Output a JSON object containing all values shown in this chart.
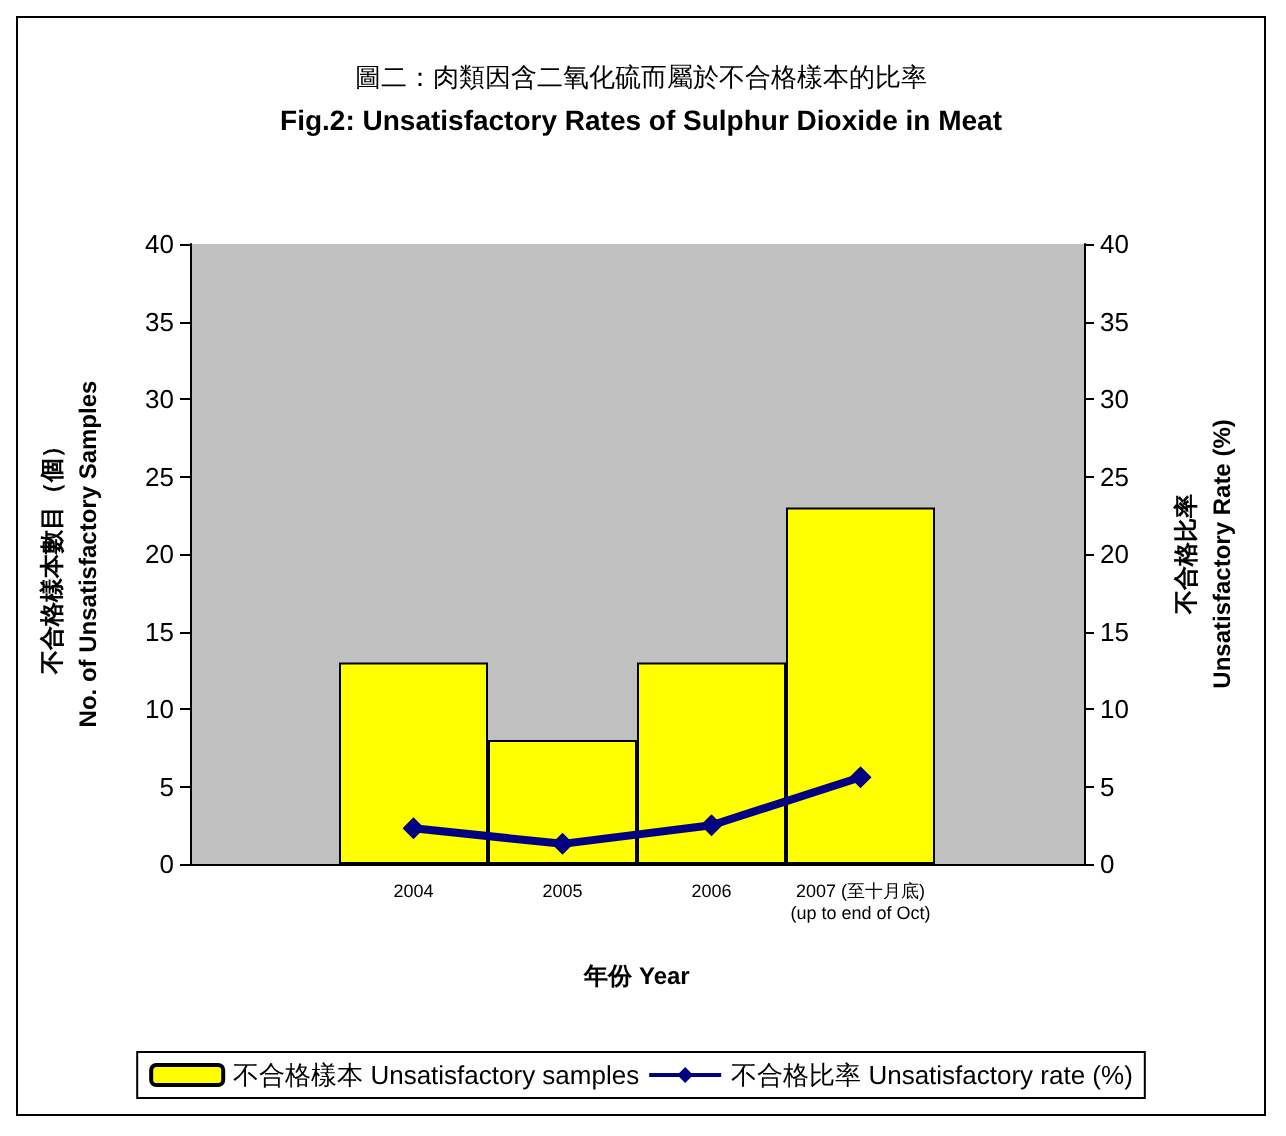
{
  "chart_data": {
    "type": "bar",
    "title": "圖二：肉類因含二氧化硫而屬於不合格樣本的比率",
    "subtitle": "Fig.2: Unsatisfactory Rates of Sulphur Dioxide in Meat",
    "xlabel": "年份 Year",
    "ylabel": "不合格樣本數目（個）\nNo. of Unsatisfactory Samples",
    "y2label": "不合格比率\nUnsatisfactory Rate (%)",
    "categories": [
      "2004",
      "2005",
      "2006",
      "2007 (至十月底)\n(up to end of Oct)"
    ],
    "series": [
      {
        "name": "不合格樣本 Unsatisfactory samples",
        "color": "#ffff00",
        "values": [
          13,
          8,
          13,
          23
        ]
      },
      {
        "name": "不合格比率 Unsatisfactory rate (%)",
        "type": "line",
        "axis": "y2",
        "color": "#000080",
        "marker": "diamond",
        "values": [
          2.3,
          1.3,
          2.5,
          5.6
        ]
      }
    ],
    "ylim": [
      0,
      40
    ],
    "yticks": [
      0,
      5,
      10,
      15,
      20,
      25,
      30,
      35,
      40
    ],
    "y2lim": [
      0,
      40
    ],
    "y2ticks": [
      0,
      5,
      10,
      15,
      20,
      25,
      30,
      35,
      40
    ],
    "grid": false,
    "legend": "bottom"
  }
}
